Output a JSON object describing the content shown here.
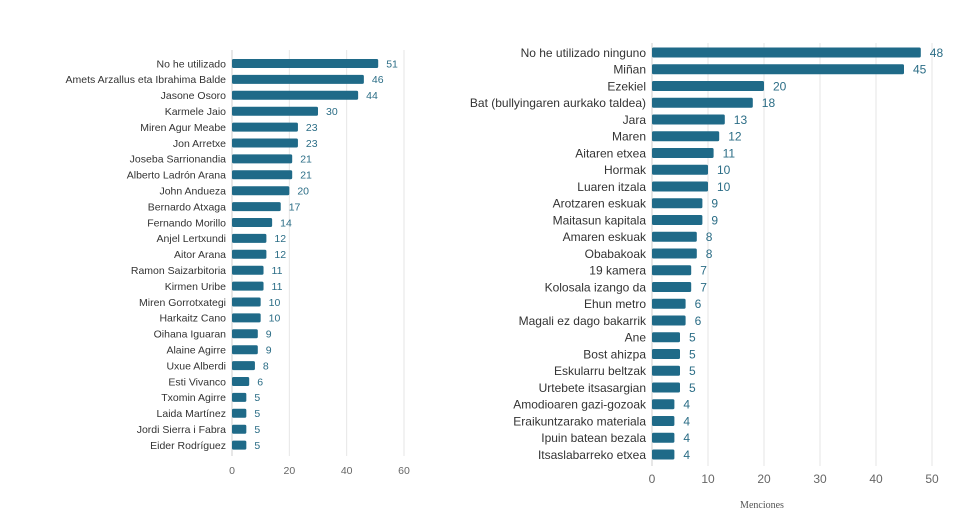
{
  "chart_data": [
    {
      "type": "bar",
      "orientation": "horizontal",
      "categories": [
        "No he utilizado",
        "Amets Arzallus eta Ibrahima Balde",
        "Jasone Osoro",
        "Karmele Jaio",
        "Miren Agur Meabe",
        "Jon Arretxe",
        "Joseba Sarrionandia",
        "Alberto Ladrón Arana",
        "John Andueza",
        "Bernardo Atxaga",
        "Fernando Morillo",
        "Anjel Lertxundi",
        "Aitor Arana",
        "Ramon Saizarbitoria",
        "Kirmen Uribe",
        "Miren Gorrotxategi",
        "Harkaitz Cano",
        "Oihana Iguaran",
        "Alaine Agirre",
        "Uxue Alberdi",
        "Esti Vivanco",
        "Txomin Agirre",
        "Laida Martínez",
        "Jordi Sierra i Fabra",
        "Eider Rodríguez"
      ],
      "values": [
        51,
        46,
        44,
        30,
        23,
        23,
        21,
        21,
        20,
        17,
        14,
        12,
        12,
        11,
        11,
        10,
        10,
        9,
        9,
        8,
        6,
        5,
        5,
        5,
        5
      ],
      "xlim": [
        0,
        60
      ],
      "xticks": [
        0,
        20,
        40,
        60
      ],
      "xlabel": "",
      "grid": true,
      "color": "#1f6a88"
    },
    {
      "type": "bar",
      "orientation": "horizontal",
      "categories": [
        "No he utilizado ninguno",
        "Miñan",
        "Ezekiel",
        "Bat (bullyingaren aurkako taldea)",
        "Jara",
        "Maren",
        "Aitaren etxea",
        "Hormak",
        "Luaren itzala",
        "Arotzaren eskuak",
        "Maitasun kapitala",
        "Amaren eskuak",
        "Obabakoak",
        "19 kamera",
        "Kolosala izango da",
        "Ehun metro",
        "Magali ez dago bakarrik",
        "Ane",
        "Bost ahizpa",
        "Eskularru beltzak",
        "Urtebete itsasargian",
        "Amodioaren gazi-gozoak",
        "Eraikuntzarako materiala",
        "Ipuin batean bezala",
        "Itsaslabarreko etxea"
      ],
      "values": [
        48,
        45,
        20,
        18,
        13,
        12,
        11,
        10,
        10,
        9,
        9,
        8,
        8,
        7,
        7,
        6,
        6,
        5,
        5,
        5,
        5,
        4,
        4,
        4,
        4
      ],
      "xlim": [
        0,
        50
      ],
      "xticks": [
        0,
        10,
        20,
        30,
        40,
        50
      ],
      "xlabel": "Menciones",
      "grid": true,
      "color": "#1f6a88"
    }
  ]
}
